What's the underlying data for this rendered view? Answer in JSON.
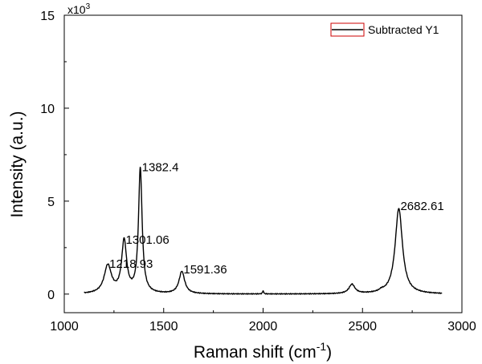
{
  "chart_data": {
    "type": "line",
    "xlabel": "Raman shift",
    "xlabel_unit_base": "cm",
    "xlabel_unit_exp": "-1",
    "ylabel": "Intensity (a.u.)",
    "y_multiplier_base": "x10",
    "y_multiplier_exp": "3",
    "xlim": [
      1000,
      3000
    ],
    "ylim": [
      -1000,
      15000
    ],
    "xticks": [
      1000,
      1500,
      2000,
      2500,
      3000
    ],
    "yticks": [
      0,
      5000,
      10000,
      15000
    ],
    "ytick_labels": [
      "0",
      "5",
      "10",
      "15"
    ],
    "grid": false,
    "legend_position": "top-right",
    "series": [
      {
        "name": "Subtracted Y1",
        "color": "#000000",
        "baseline": 0,
        "peaks": [
          {
            "x": 1218.93,
            "height": 1500,
            "width": 22
          },
          {
            "x": 1301.06,
            "height": 2800,
            "width": 15
          },
          {
            "x": 1382.4,
            "height": 6700,
            "width": 11
          },
          {
            "x": 1591.36,
            "height": 1200,
            "width": 17
          },
          {
            "x": 2000,
            "height": 180,
            "width": 3
          },
          {
            "x": 2447,
            "height": 500,
            "width": 18
          },
          {
            "x": 2595,
            "height": 80,
            "width": 12
          },
          {
            "x": 2682.61,
            "height": 4600,
            "width": 22
          }
        ],
        "x_start": 1100,
        "x_end": 2900
      }
    ],
    "annotations": [
      {
        "text": "1218.93",
        "x": 1218.93,
        "y": 1500
      },
      {
        "text": "1301.06",
        "x": 1301.06,
        "y": 2800
      },
      {
        "text": "1382.4",
        "x": 1382.4,
        "y": 6700
      },
      {
        "text": "1591.36",
        "x": 1591.36,
        "y": 1200
      },
      {
        "text": "2682.61",
        "x": 2682.61,
        "y": 4600
      }
    ]
  }
}
